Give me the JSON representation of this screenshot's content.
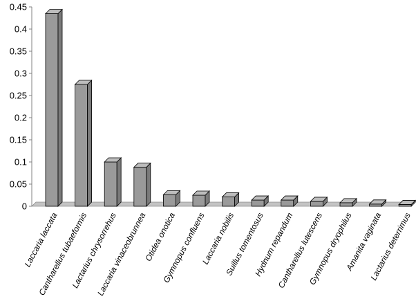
{
  "chart_data": {
    "type": "bar",
    "title": "",
    "xlabel": "",
    "ylabel": "",
    "ylim": [
      0,
      0.45
    ],
    "y_ticks": [
      "0",
      "0.05",
      "0.1",
      "0.15",
      "0.2",
      "0.25",
      "0.3",
      "0.35",
      "0.4",
      "0.45"
    ],
    "grid": false,
    "legend": "none",
    "bar_color": "#9a9a9a",
    "categories": [
      "Laccaria laccata",
      "Cantharellus tubaeformis",
      "Lactarius chrysorrehus",
      "Laccaria vinaceobrunnea",
      "Otidea onotica",
      "Gymnopus confluens",
      "Laccaria nobilis",
      "Suillus tomentosus",
      "Hydnum repandum",
      "Cantharellus lutescens",
      "Gymnopus dryophilus",
      "Amanita vaginata",
      "Lactarius deterrimus"
    ],
    "values": [
      0.435,
      0.275,
      0.1,
      0.088,
      0.026,
      0.025,
      0.021,
      0.014,
      0.014,
      0.011,
      0.008,
      0.005,
      0.004
    ]
  }
}
